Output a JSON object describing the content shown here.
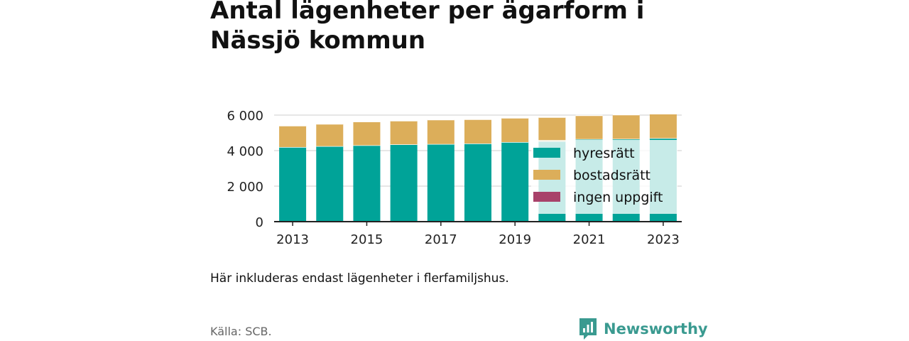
{
  "header": {
    "title": "Antal lägenheter per ägarform i Nässjö kommun"
  },
  "chart_data": {
    "type": "bar",
    "stacked": true,
    "title": "Antal lägenheter per ägarform i Nässjö kommun",
    "xlabel": "",
    "ylabel": "",
    "categories": [
      "2013",
      "2014",
      "2015",
      "2016",
      "2017",
      "2018",
      "2019",
      "2020",
      "2021",
      "2022",
      "2023"
    ],
    "x_tick_labels": [
      "2013",
      "2015",
      "2017",
      "2019",
      "2021",
      "2023"
    ],
    "y_ticks": [
      0,
      2000,
      4000,
      6000
    ],
    "y_tick_labels": [
      "0",
      "2 000",
      "4 000",
      "6 000"
    ],
    "ylim": [
      0,
      6600
    ],
    "grid": true,
    "legend_position": "right",
    "series": [
      {
        "name": "hyresrätt",
        "color": "#00a398",
        "values": [
          4200,
          4250,
          4300,
          4350,
          4370,
          4400,
          4480,
          4530,
          4650,
          4660,
          4700
        ]
      },
      {
        "name": "bostadsrätt",
        "color": "#dcae5a",
        "values": [
          1200,
          1250,
          1330,
          1330,
          1370,
          1360,
          1360,
          1350,
          1330,
          1360,
          1370
        ]
      },
      {
        "name": "ingen uppgift",
        "color": "#a8426a",
        "values": [
          0,
          0,
          0,
          0,
          0,
          0,
          0,
          0,
          0,
          0,
          0
        ]
      }
    ]
  },
  "footer": {
    "note": "Här inkluderas endast lägenheter i flerfamiljshus.",
    "source": "Källa: SCB.",
    "brand": "Newsworthy",
    "brand_icon": "newsworthy-logo-icon"
  }
}
